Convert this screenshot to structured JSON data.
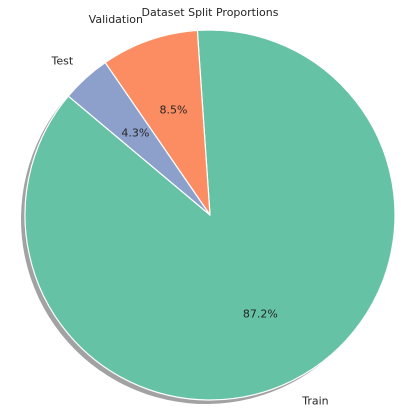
{
  "chart_data": {
    "type": "pie",
    "title": "Dataset Split Proportions",
    "start_angle_deg": 140,
    "counterclockwise": true,
    "shadow": true,
    "slices": [
      {
        "label": "Train",
        "value": 87.2,
        "pct_label": "87.2%",
        "color": "#66c2a5"
      },
      {
        "label": "Validation",
        "value": 8.5,
        "pct_label": "8.5%",
        "color": "#fc8d62"
      },
      {
        "label": "Test",
        "value": 4.3,
        "pct_label": "4.3%",
        "color": "#8da0cb"
      }
    ]
  }
}
